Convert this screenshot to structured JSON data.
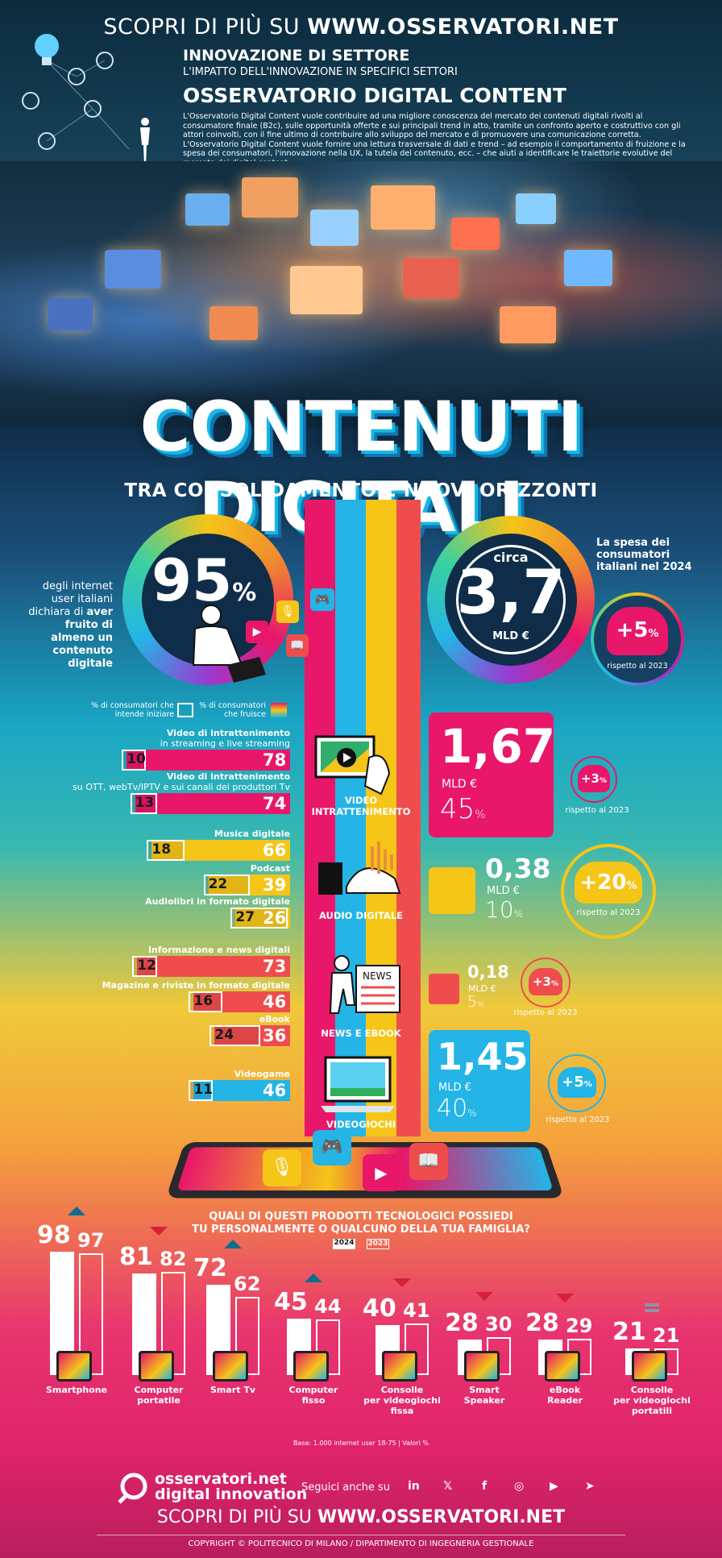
{
  "header": {
    "banner_prefix": "SCOPRI DI PIÙ SU",
    "banner_site": "WWW.OSSERVATORI.NET",
    "kicker": "INNOVAZIONE DI SETTORE",
    "kicker_sub": "L'IMPATTO DELL'INNOVAZIONE IN SPECIFICI SETTORI",
    "observatory": "OSSERVATORIO DIGITAL CONTENT",
    "intro": "L'Osservatorio Digital Content vuole contribuire ad una migliore conoscenza del mercato dei contenuti digitali rivolti al consumatore finale (B2c), sulle opportunità offerte e sui principali trend in atto, tramite un confronto aperto e costruttivo con gli attori coinvolti, con il fine ultimo di contribuire allo sviluppo del mercato e di promuovere una comunicazione corretta. L'Osservatorio Digital Content vuole fornire una lettura trasversale di dati e trend – ad esempio il comportamento di fruizione e la spesa dei consumatori, l'innovazione nella UX, la tutela del contenuto, ecc. – che aiuti a identificare le traiettorie evolutive del mercato dei digital content"
  },
  "hero": {
    "title": "CONTENUTI DIGITALI",
    "subtitle": "TRA CONSOLIDAMENTO E NUOVI ORIZZONTI"
  },
  "kpi_users": {
    "value": "95",
    "unit": "%",
    "text_plain": "degli internet user italiani dichiara di",
    "text_bold": "aver fruito di almeno un contenuto digitale"
  },
  "kpi_spend": {
    "prefix": "circa",
    "value": "3,7",
    "unit": "MLD €",
    "label": "La spesa dei consumatori italiani nel 2024",
    "growth": "+5",
    "growth_unit": "%",
    "growth_label": "rispetto al 2023"
  },
  "legend": {
    "intend": "% di consumatori che intende iniziare",
    "use": "% di consumatori che fruisce"
  },
  "colors": {
    "video": "#e8176a",
    "audio": "#f5c518",
    "news": "#ef4d4d",
    "games": "#24b4e6"
  },
  "categories": [
    {
      "name": "VIDEO INTRATTENIMENTO",
      "spend": "1,67",
      "unit": "MLD €",
      "share": "45",
      "share_unit": "%",
      "growth": "+3",
      "growth_unit": "%",
      "growth_label": "rispetto al 2023"
    },
    {
      "name": "AUDIO DIGITALE",
      "spend": "0,38",
      "unit": "MLD €",
      "share": "10",
      "share_unit": "%",
      "growth": "+20",
      "growth_unit": "%",
      "growth_label": "rispetto al 2023"
    },
    {
      "name": "NEWS E EBOOK",
      "spend": "0,18",
      "unit": "MLD €",
      "share": "5",
      "share_unit": "%",
      "growth": "+3",
      "growth_unit": "%",
      "growth_label": "rispetto al 2023"
    },
    {
      "name": "VIDEOGIOCHI",
      "spend": "1,45",
      "unit": "MLD €",
      "share": "40",
      "share_unit": "%",
      "growth": "+5",
      "growth_unit": "%",
      "growth_label": "rispetto al 2023"
    }
  ],
  "products_question": {
    "line1": "QUALI DI QUESTI PRODOTTI TECNOLOGICI POSSIEDI",
    "line2": "TU PERSONALMENTE O QUALCUNO DELLA TUA FAMIGLIA?",
    "year_a": "2024",
    "year_b": "2023"
  },
  "base_note": "Base: 1.000 internet user 18-75 | Valori %",
  "footer": {
    "logo_line1": "osservatori.net",
    "logo_line2": "digital innovation",
    "follow": "Seguici anche su",
    "social": [
      "in",
      "𝕏",
      "f",
      "◎",
      "▶",
      "➤"
    ],
    "banner_prefix": "SCOPRI DI PIÙ SU",
    "banner_site": "WWW.OSSERVATORI.NET",
    "copyright": "COPYRIGHT © POLITECNICO DI MILANO / DIPARTIMENTO DI INGEGNERIA GESTIONALE"
  },
  "chart_data": [
    {
      "type": "bar",
      "title": "",
      "categories": [
        "Video di intrattenimento in streaming e live streaming",
        "Video di intrattenimento su OTT, webTv/IPTV e sui canali dei produttori Tv",
        "Musica digitale",
        "Podcast",
        "Audiolibri in formato digitale",
        "Informazione e news digitali",
        "Magazine e riviste in formato digitale",
        "eBook",
        "Videogame"
      ],
      "category_lines": [
        [
          "Video di intrattenimento",
          "in streaming e live streaming"
        ],
        [
          "Video di intrattenimento",
          "su OTT, webTv/IPTV e sui canali dei produttori Tv"
        ],
        [
          "Musica digitale"
        ],
        [
          "Podcast"
        ],
        [
          "Audiolibri in formato digitale"
        ],
        [
          "Informazione e news digitali"
        ],
        [
          "Magazine e riviste in formato digitale"
        ],
        [
          "eBook"
        ],
        [
          "Videogame"
        ]
      ],
      "group": [
        "video",
        "video",
        "audio",
        "audio",
        "audio",
        "news",
        "news",
        "news",
        "games"
      ],
      "series": [
        {
          "name": "% di consumatori che fruisce",
          "values": [
            78,
            74,
            66,
            39,
            26,
            73,
            46,
            36,
            46
          ]
        },
        {
          "name": "% di consumatori che intende iniziare",
          "values": [
            10,
            13,
            18,
            22,
            27,
            12,
            16,
            24,
            11
          ]
        }
      ],
      "ylim": [
        0,
        100
      ]
    },
    {
      "type": "bar",
      "title": "QUALI DI QUESTI PRODOTTI TECNOLOGICI POSSIEDI TU PERSONALMENTE O QUALCUNO DELLA TUA FAMIGLIA?",
      "categories": [
        "Smartphone",
        "Computer portatile",
        "Smart Tv",
        "Computer fisso",
        "Consolle per videogiochi fissa",
        "Smart Speaker",
        "eBook Reader",
        "Consolle per videogiochi portatile"
      ],
      "category_lines": [
        [
          "Smartphone"
        ],
        [
          "Computer",
          "portatile"
        ],
        [
          "Smart Tv"
        ],
        [
          "Computer",
          "fisso"
        ],
        [
          "Consolle",
          "per videogiochi",
          "fissa"
        ],
        [
          "Smart",
          "Speaker"
        ],
        [
          "eBook",
          "Reader"
        ],
        [
          "Consolle",
          "per videogiochi",
          "portatili"
        ]
      ],
      "series": [
        {
          "name": "2024",
          "values": [
            98,
            81,
            72,
            45,
            40,
            28,
            28,
            21
          ]
        },
        {
          "name": "2023",
          "values": [
            97,
            82,
            62,
            44,
            41,
            30,
            29,
            21
          ]
        }
      ],
      "trend": [
        "up",
        "down",
        "up",
        "up",
        "down",
        "down",
        "down",
        "equal"
      ],
      "ylim": [
        0,
        100
      ]
    }
  ]
}
